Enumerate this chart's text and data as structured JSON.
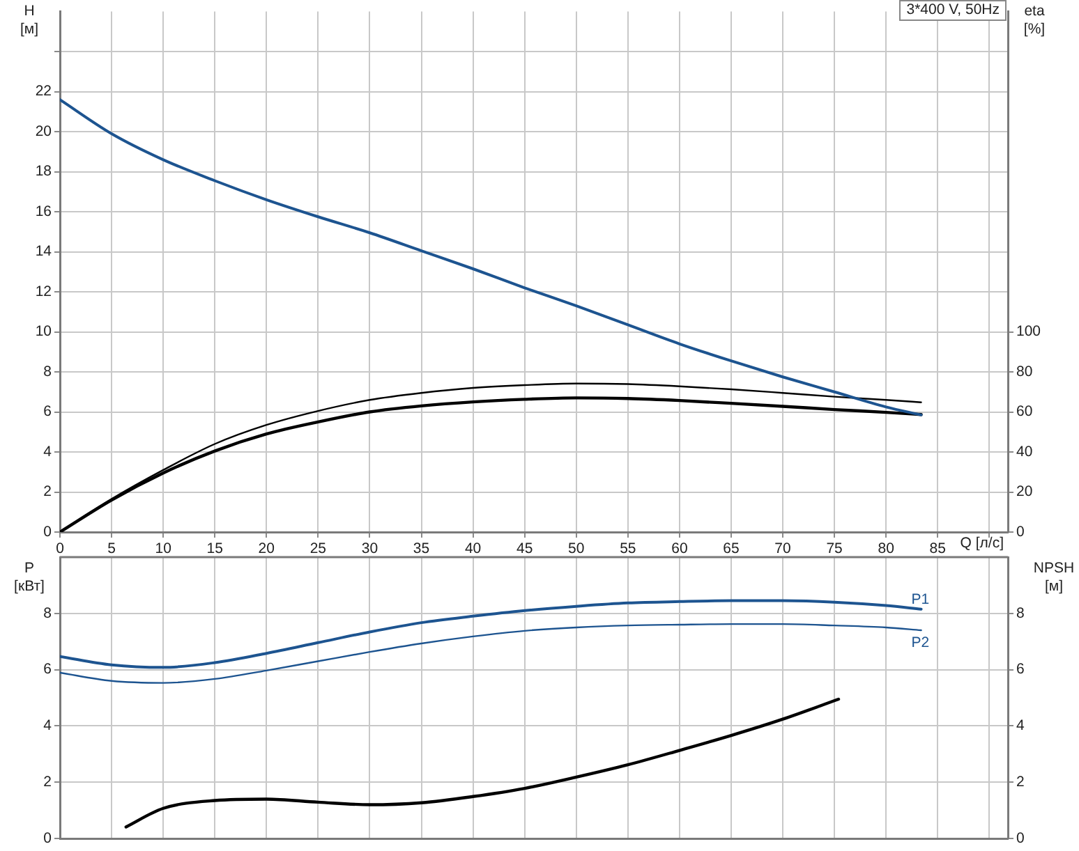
{
  "chart_data": [
    {
      "type": "line",
      "title": "3*400 V, 50Hz",
      "xlabel": "Q [л/с]",
      "ylabel": "H [м]",
      "y2label": "eta [%]",
      "x": [
        0,
        5,
        10,
        15,
        20,
        25,
        30,
        35,
        40,
        45,
        50,
        55,
        60,
        65,
        70,
        75,
        80,
        83.4
      ],
      "xlim": [
        0,
        91.8
      ],
      "xticks": [
        0,
        5,
        10,
        15,
        20,
        25,
        30,
        35,
        40,
        45,
        50,
        55,
        60,
        65,
        70,
        75,
        80,
        85,
        {
          "value": 90,
          "label": null
        }
      ],
      "ylim": [
        0,
        26
      ],
      "yticks": [
        0,
        2,
        4,
        6,
        8,
        10,
        12,
        14,
        16,
        18,
        20,
        22,
        {
          "value": 24,
          "label": null
        }
      ],
      "y2lim": [
        0,
        260
      ],
      "y2ticks": [
        0,
        20,
        40,
        60,
        80,
        100
      ],
      "grid": true,
      "series": [
        {
          "color": "#1d5490",
          "values": [
            21.6,
            19.9,
            18.6,
            17.55,
            16.6,
            15.75,
            14.95,
            14.05,
            13.15,
            12.2,
            11.3,
            10.35,
            9.4,
            8.55,
            7.75,
            7.0,
            6.25,
            5.85
          ]
        },
        {
          "color": "#000000",
          "axis": "y2",
          "values": [
            0,
            16.5,
            31,
            44,
            53.5,
            60.5,
            66,
            69.5,
            72,
            73.4,
            74.2,
            73.9,
            72.8,
            71.3,
            69.5,
            67.6,
            66,
            64.8
          ]
        },
        {
          "color": "#000000",
          "axis": "y2",
          "values": [
            0,
            16,
            29.5,
            40.5,
            49,
            55,
            60,
            63,
            65,
            66.3,
            67,
            66.7,
            65.7,
            64.3,
            62.8,
            61.2,
            59.8,
            58.7
          ]
        }
      ]
    },
    {
      "type": "line",
      "ylabel": "P [кВт]",
      "y2label": "NPSH [м]",
      "tick_labels": "y",
      "x": [
        0,
        5,
        10,
        15,
        20,
        25,
        30,
        35,
        40,
        45,
        50,
        55,
        60,
        65,
        70,
        75,
        80,
        83.4
      ],
      "xlim": [
        0,
        91.8
      ],
      "xticks": [
        0,
        5,
        10,
        15,
        20,
        25,
        30,
        35,
        40,
        45,
        50,
        55,
        60,
        65,
        70,
        75,
        80,
        85,
        90
      ],
      "ylim": [
        0,
        10
      ],
      "yticks": [
        0,
        2,
        4,
        6,
        8
      ],
      "y2lim": [
        0,
        10
      ],
      "y2ticks": [
        0,
        2,
        4,
        6,
        8
      ],
      "grid": true,
      "series": [
        {
          "name": "P1",
          "color": "#1d5490",
          "values": [
            6.47,
            6.17,
            6.08,
            6.25,
            6.58,
            6.96,
            7.34,
            7.67,
            7.9,
            8.1,
            8.25,
            8.37,
            8.42,
            8.45,
            8.45,
            8.4,
            8.28,
            8.15
          ]
        },
        {
          "name": "P2",
          "color": "#1d5490",
          "values": [
            5.89,
            5.6,
            5.53,
            5.67,
            5.97,
            6.3,
            6.63,
            6.93,
            7.18,
            7.38,
            7.5,
            7.57,
            7.6,
            7.62,
            7.62,
            7.57,
            7.5,
            7.4
          ]
        },
        {
          "color": "#000000",
          "axis": "y2",
          "x": [
            6.4,
            10,
            15,
            20,
            25,
            30,
            35,
            40,
            45,
            50,
            55,
            60,
            65,
            70,
            75.4
          ],
          "values": [
            0.41,
            1.07,
            1.35,
            1.4,
            1.29,
            1.2,
            1.27,
            1.49,
            1.78,
            2.18,
            2.62,
            3.13,
            3.66,
            4.24,
            4.95
          ]
        }
      ]
    }
  ]
}
